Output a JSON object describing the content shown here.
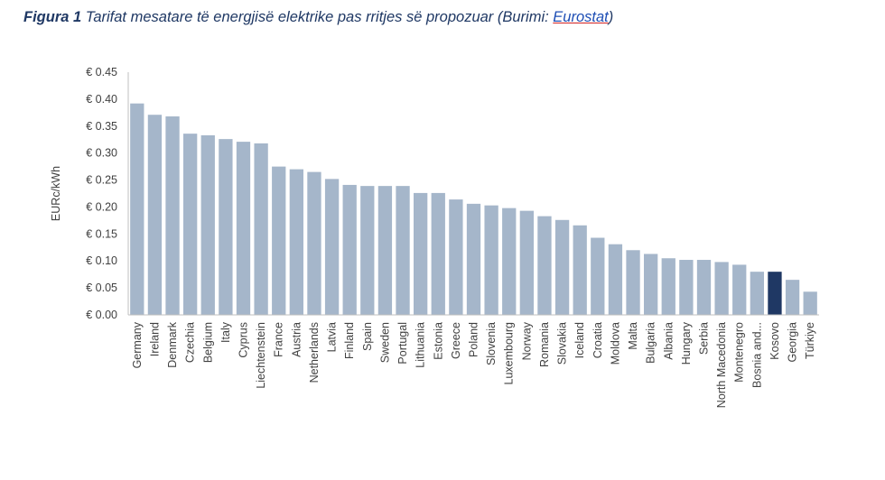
{
  "caption": {
    "lead": "Figura 1",
    "text": " Tarifat mesatare të energjisë elektrike pas rritjes së propozuar (Burimi: ",
    "source_link": "Eurostat",
    "tail": ")"
  },
  "chart_data": {
    "type": "bar",
    "ylabel": "EURc/kWh",
    "ylim": [
      0,
      0.45
    ],
    "yticks": [
      "€ 0.00",
      "€ 0.05",
      "€ 0.10",
      "€ 0.15",
      "€ 0.20",
      "€ 0.25",
      "€ 0.30",
      "€ 0.35",
      "€ 0.40",
      "€ 0.45"
    ],
    "ytick_values": [
      0,
      0.05,
      0.1,
      0.15,
      0.2,
      0.25,
      0.3,
      0.35,
      0.4,
      0.45
    ],
    "grid": false,
    "categories": [
      "Germany",
      "Ireland",
      "Denmark",
      "Czechia",
      "Belgium",
      "Italy",
      "Cyprus",
      "Liechtenstein",
      "France",
      "Austria",
      "Netherlands",
      "Latvia",
      "Finland",
      "Spain",
      "Sweden",
      "Portugal",
      "Lithuania",
      "Estonia",
      "Greece",
      "Poland",
      "Slovenia",
      "Luxembourg",
      "Norway",
      "Romania",
      "Slovakia",
      "Iceland",
      "Croatia",
      "Moldova",
      "Malta",
      "Bulgaria",
      "Albania",
      "Hungary",
      "Serbia",
      "North Macedonia",
      "Montenegro",
      "Bosnia and...",
      "Kosovo",
      "Georgia",
      "Türkiye"
    ],
    "values": [
      0.392,
      0.371,
      0.368,
      0.336,
      0.333,
      0.326,
      0.321,
      0.318,
      0.275,
      0.27,
      0.265,
      0.252,
      0.241,
      0.239,
      0.239,
      0.239,
      0.226,
      0.226,
      0.214,
      0.206,
      0.203,
      0.198,
      0.193,
      0.183,
      0.176,
      0.166,
      0.143,
      0.131,
      0.12,
      0.113,
      0.105,
      0.102,
      0.102,
      0.098,
      0.093,
      0.08,
      0.08,
      0.065,
      0.043
    ],
    "highlight": "Kosovo",
    "colors": {
      "bar": "#A5B6CA",
      "highlight": "#1F3864",
      "axis": "#BFBFBF"
    }
  }
}
